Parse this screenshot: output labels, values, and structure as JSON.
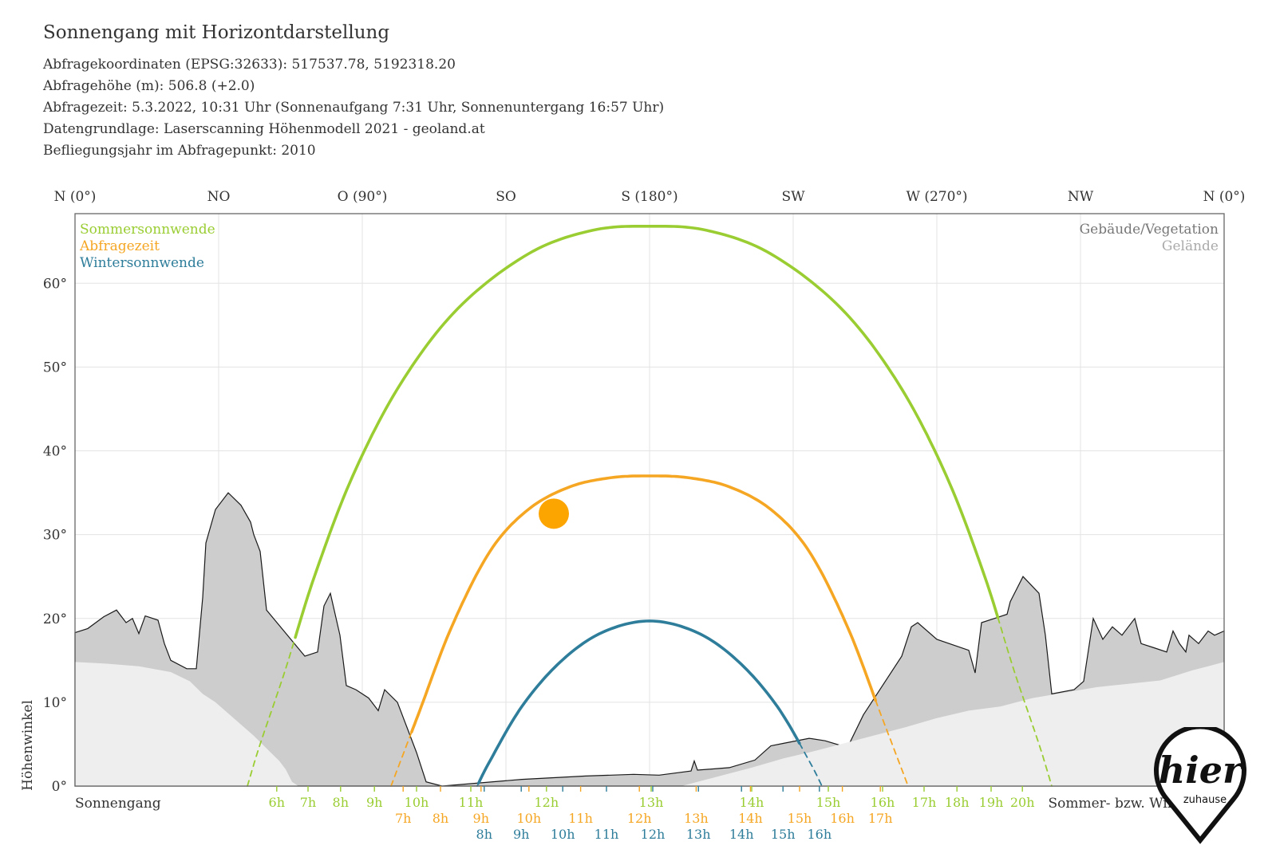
{
  "header": {
    "title": "Sonnengang mit Horizontdarstellung",
    "lines": [
      "Abfragekoordinaten (EPSG:32633): 517537.78, 5192318.20",
      "Abfragehöhe (m): 506.8 (+2.0)",
      "Abfragezeit: 5.3.2022, 10:31 Uhr (Sonnenaufgang 7:31 Uhr,  Sonnenuntergang 16:57 Uhr)",
      "Datengrundlage: Laserscanning Höhenmodell 2021 - geoland.at",
      "Befliegungsjahr im Abfragepunkt: 2010"
    ]
  },
  "chart_data": {
    "type": "line",
    "x_axis": {
      "range": [
        0,
        360
      ],
      "ticks": [
        {
          "value": 0,
          "label": "N (0°)"
        },
        {
          "value": 45,
          "label": "NO"
        },
        {
          "value": 90,
          "label": "O (90°)"
        },
        {
          "value": 135,
          "label": "SO"
        },
        {
          "value": 180,
          "label": "S (180°)"
        },
        {
          "value": 225,
          "label": "SW"
        },
        {
          "value": 270,
          "label": "W (270°)"
        },
        {
          "value": 315,
          "label": "NW"
        },
        {
          "value": 360,
          "label": "N (0°)"
        }
      ],
      "bottom_left_label": "Sonnengang",
      "bottom_right_label": "Sommer- bzw. Winterzeit"
    },
    "y_axis": {
      "label": "Höhenwinkel",
      "range": [
        0,
        70
      ],
      "ticks": [
        {
          "value": 0,
          "label": "0°"
        },
        {
          "value": 10,
          "label": "10°"
        },
        {
          "value": 20,
          "label": "20°"
        },
        {
          "value": 30,
          "label": "30°"
        },
        {
          "value": 40,
          "label": "40°"
        },
        {
          "value": 50,
          "label": "50°"
        },
        {
          "value": 60,
          "label": "60°"
        }
      ]
    },
    "grid": true,
    "legend": {
      "placement": "top-left",
      "items": [
        {
          "name": "Sommersonnwende",
          "color": "#9acd32"
        },
        {
          "name": "Abfragezeit",
          "color": "#f5a623"
        },
        {
          "name": "Wintersonnwende",
          "color": "#2e7d9a"
        }
      ]
    },
    "legend_right": {
      "placement": "top-right",
      "items": [
        {
          "name": "Gebäude/Vegetation",
          "color": "#777777"
        },
        {
          "name": "Gelände",
          "color": "#aaaaaa"
        }
      ]
    },
    "series": [
      {
        "name": "Sommersonnwende",
        "color": "#9acd32",
        "points": [
          [
            54,
            0
          ],
          [
            58,
            5
          ],
          [
            66,
            14
          ],
          [
            75,
            25
          ],
          [
            87,
            37
          ],
          [
            102,
            48
          ],
          [
            120,
            57
          ],
          [
            142,
            63.5
          ],
          [
            162,
            66.3
          ],
          [
            180,
            66.8
          ],
          [
            198,
            66.3
          ],
          [
            218,
            63.5
          ],
          [
            240,
            57
          ],
          [
            258,
            48
          ],
          [
            273,
            37
          ],
          [
            285,
            25
          ],
          [
            294,
            14
          ],
          [
            302,
            5
          ],
          [
            306,
            0
          ]
        ],
        "hour_labels": [
          {
            "label": "6h",
            "az": 63.2
          },
          {
            "label": "7h",
            "az": 73
          },
          {
            "label": "8h",
            "az": 83.2
          },
          {
            "label": "9h",
            "az": 93.8
          },
          {
            "label": "10h",
            "az": 107
          },
          {
            "label": "11h",
            "az": 124
          },
          {
            "label": "12h",
            "az": 147.7
          },
          {
            "label": "13h",
            "az": 180.5
          },
          {
            "label": "14h",
            "az": 212
          },
          {
            "label": "15h",
            "az": 236
          },
          {
            "label": "16h",
            "az": 253
          },
          {
            "label": "17h",
            "az": 266
          },
          {
            "label": "18h",
            "az": 276.3
          },
          {
            "label": "19h",
            "az": 287
          },
          {
            "label": "20h",
            "az": 296.8
          }
        ]
      },
      {
        "name": "Abfragezeit",
        "color": "#f5a623",
        "points": [
          [
            99,
            0
          ],
          [
            102,
            3
          ],
          [
            108,
            9
          ],
          [
            118,
            19
          ],
          [
            130,
            28
          ],
          [
            142,
            33
          ],
          [
            155,
            35.7
          ],
          [
            168,
            36.8
          ],
          [
            180,
            37
          ],
          [
            192,
            36.8
          ],
          [
            205,
            35.7
          ],
          [
            218,
            33
          ],
          [
            230,
            28
          ],
          [
            242,
            19
          ],
          [
            252,
            9
          ],
          [
            258,
            3
          ],
          [
            261,
            0
          ]
        ],
        "hour_labels": [
          {
            "label": "7h",
            "az": 102.8
          },
          {
            "label": "8h",
            "az": 114.5
          },
          {
            "label": "9h",
            "az": 127.2
          },
          {
            "label": "10h",
            "az": 142.2
          },
          {
            "label": "11h",
            "az": 158.4
          },
          {
            "label": "12h",
            "az": 176.8
          },
          {
            "label": "13h",
            "az": 194.6
          },
          {
            "label": "14h",
            "az": 211.6
          },
          {
            "label": "15h",
            "az": 227
          },
          {
            "label": "16h",
            "az": 240.4
          },
          {
            "label": "17h",
            "az": 252.3
          }
        ]
      },
      {
        "name": "Wintersonnwende",
        "color": "#2e7d9a",
        "points": [
          [
            126,
            0
          ],
          [
            130,
            3
          ],
          [
            140,
            9.5
          ],
          [
            152,
            14.8
          ],
          [
            165,
            18.3
          ],
          [
            180,
            19.7
          ],
          [
            195,
            18.3
          ],
          [
            208,
            14.8
          ],
          [
            220,
            9.5
          ],
          [
            230,
            3
          ],
          [
            234,
            0
          ]
        ],
        "hour_labels": [
          {
            "label": "8h",
            "az": 128.2
          },
          {
            "label": "9h",
            "az": 139.8
          },
          {
            "label": "10h",
            "az": 152.8
          },
          {
            "label": "11h",
            "az": 166.5
          },
          {
            "label": "12h",
            "az": 181
          },
          {
            "label": "13h",
            "az": 195.3
          },
          {
            "label": "14h",
            "az": 208.8
          },
          {
            "label": "15h",
            "az": 221.8
          },
          {
            "label": "16h",
            "az": 233.2
          }
        ]
      }
    ],
    "sun_marker": {
      "azimuth": 150,
      "elevation": 32.5
    },
    "horizon_buildings": [
      [
        0,
        18.3
      ],
      [
        4,
        18.8
      ],
      [
        9,
        20.2
      ],
      [
        13,
        21
      ],
      [
        16,
        19.5
      ],
      [
        18,
        20
      ],
      [
        20,
        18.2
      ],
      [
        22,
        20.3
      ],
      [
        26,
        19.8
      ],
      [
        28,
        17
      ],
      [
        30,
        15
      ],
      [
        35,
        14
      ],
      [
        38,
        14
      ],
      [
        40,
        22.5
      ],
      [
        41,
        29
      ],
      [
        44,
        33
      ],
      [
        48,
        35
      ],
      [
        52,
        33.5
      ],
      [
        55,
        31.5
      ],
      [
        56,
        30
      ],
      [
        58,
        28
      ],
      [
        60,
        21
      ],
      [
        72,
        15.5
      ],
      [
        76,
        16
      ],
      [
        78,
        21.5
      ],
      [
        80,
        23
      ],
      [
        83,
        18
      ],
      [
        85,
        12
      ],
      [
        88,
        11.5
      ],
      [
        92,
        10.5
      ],
      [
        95,
        9
      ],
      [
        97,
        11.5
      ],
      [
        101,
        10
      ],
      [
        104,
        7
      ],
      [
        107,
        4
      ],
      [
        110,
        0.5
      ],
      [
        115,
        0
      ],
      [
        140,
        0.8
      ],
      [
        160,
        1.2
      ],
      [
        175,
        1.4
      ],
      [
        183,
        1.3
      ],
      [
        193,
        1.8
      ],
      [
        194,
        3
      ],
      [
        195,
        1.9
      ],
      [
        205,
        2.2
      ],
      [
        213,
        3.1
      ],
      [
        218,
        4.8
      ],
      [
        222,
        5.1
      ],
      [
        230,
        5.7
      ],
      [
        235,
        5.4
      ],
      [
        242,
        4.6
      ],
      [
        247,
        8.5
      ],
      [
        259,
        15.5
      ],
      [
        262,
        19
      ],
      [
        264,
        19.5
      ],
      [
        270,
        17.5
      ],
      [
        280,
        16.2
      ],
      [
        282,
        13.5
      ],
      [
        284,
        19.5
      ],
      [
        288,
        20
      ],
      [
        292,
        20.5
      ],
      [
        293,
        22
      ],
      [
        297,
        25
      ],
      [
        302,
        23
      ],
      [
        304,
        18
      ],
      [
        306,
        11
      ],
      [
        313,
        11.5
      ],
      [
        316,
        12.5
      ],
      [
        319,
        20
      ],
      [
        322,
        17.5
      ],
      [
        325,
        19
      ],
      [
        328,
        18
      ],
      [
        332,
        20
      ],
      [
        334,
        17
      ],
      [
        338,
        16.5
      ],
      [
        342,
        16
      ],
      [
        344,
        18.5
      ],
      [
        346,
        17
      ],
      [
        348,
        16
      ],
      [
        349,
        18
      ],
      [
        352,
        17
      ],
      [
        355,
        18.5
      ],
      [
        357,
        18
      ],
      [
        360,
        18.5
      ]
    ],
    "horizon_terrain": [
      [
        0,
        14.8
      ],
      [
        10,
        14.6
      ],
      [
        20,
        14.3
      ],
      [
        30,
        13.6
      ],
      [
        36,
        12.5
      ],
      [
        40,
        11
      ],
      [
        44,
        10
      ],
      [
        50,
        8
      ],
      [
        56,
        6
      ],
      [
        60,
        4.5
      ],
      [
        64,
        3
      ],
      [
        66,
        2
      ],
      [
        68,
        0.5
      ],
      [
        70,
        0
      ],
      [
        190,
        0
      ],
      [
        200,
        1
      ],
      [
        212,
        2.2
      ],
      [
        222,
        3.3
      ],
      [
        232,
        4.2
      ],
      [
        240,
        5
      ],
      [
        250,
        6
      ],
      [
        260,
        7
      ],
      [
        270,
        8.1
      ],
      [
        280,
        9
      ],
      [
        290,
        9.5
      ],
      [
        300,
        10.5
      ],
      [
        320,
        11.8
      ],
      [
        330,
        12.2
      ],
      [
        340,
        12.6
      ],
      [
        350,
        13.8
      ],
      [
        355,
        14.3
      ],
      [
        360,
        14.8
      ]
    ]
  }
}
